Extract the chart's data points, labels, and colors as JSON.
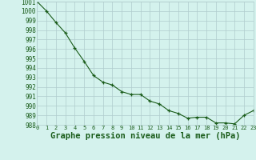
{
  "x": [
    0,
    1,
    2,
    3,
    4,
    5,
    6,
    7,
    8,
    9,
    10,
    11,
    12,
    13,
    14,
    15,
    16,
    17,
    18,
    19,
    20,
    21,
    22,
    23
  ],
  "y": [
    1001.0,
    1000.0,
    998.8,
    997.7,
    996.1,
    994.7,
    993.2,
    992.5,
    992.2,
    991.5,
    991.2,
    991.2,
    990.5,
    990.2,
    989.5,
    989.2,
    988.7,
    988.8,
    988.8,
    988.2,
    988.2,
    988.1,
    989.0,
    989.5
  ],
  "ylim": [
    988,
    1001
  ],
  "yticks": [
    988,
    989,
    990,
    991,
    992,
    993,
    994,
    995,
    996,
    997,
    998,
    999,
    1000,
    1001
  ],
  "xticks": [
    0,
    1,
    2,
    3,
    4,
    5,
    6,
    7,
    8,
    9,
    10,
    11,
    12,
    13,
    14,
    15,
    16,
    17,
    18,
    19,
    20,
    21,
    22,
    23
  ],
  "xlabel": "Graphe pression niveau de la mer (hPa)",
  "line_color": "#1a5c1a",
  "marker_color": "#1a5c1a",
  "bg_color": "#d4f2ed",
  "grid_color": "#b0cccc",
  "tick_label_color": "#1a5c1a",
  "xlabel_color": "#1a5c1a",
  "ytick_fontsize": 5.5,
  "xtick_fontsize": 5.0,
  "xlabel_fontsize": 7.5
}
